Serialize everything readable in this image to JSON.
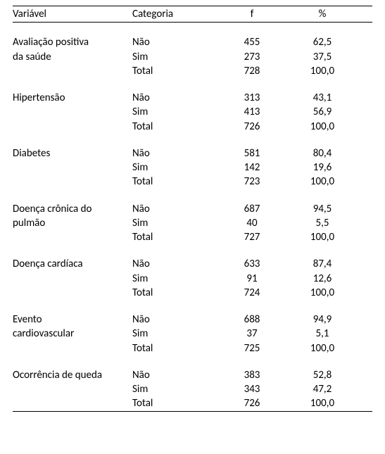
{
  "header": {
    "variavel": "Variável",
    "categoria": "Categoria",
    "f": "f",
    "pct": "%"
  },
  "groups": [
    {
      "var_lines": [
        "Avaliação positiva",
        "da saúde"
      ],
      "rows": [
        {
          "cat": "Não",
          "f": "455",
          "pct": "62,5"
        },
        {
          "cat": "Sim",
          "f": "273",
          "pct": "37,5"
        },
        {
          "cat": "Total",
          "f": "728",
          "pct": "100,0"
        }
      ]
    },
    {
      "var_lines": [
        "Hipertensão"
      ],
      "rows": [
        {
          "cat": "Não",
          "f": "313",
          "pct": "43,1"
        },
        {
          "cat": "Sim",
          "f": "413",
          "pct": "56,9"
        },
        {
          "cat": "Total",
          "f": "726",
          "pct": "100,0"
        }
      ]
    },
    {
      "var_lines": [
        "Diabetes"
      ],
      "rows": [
        {
          "cat": "Não",
          "f": "581",
          "pct": "80,4"
        },
        {
          "cat": "Sim",
          "f": "142",
          "pct": "19,6"
        },
        {
          "cat": "Total",
          "f": "723",
          "pct": "100,0"
        }
      ]
    },
    {
      "var_lines": [
        "Doença crônica do",
        "pulmão"
      ],
      "rows": [
        {
          "cat": "Não",
          "f": "687",
          "pct": "94,5"
        },
        {
          "cat": "Sim",
          "f": "40",
          "pct": "5,5"
        },
        {
          "cat": "Total",
          "f": "727",
          "pct": "100,0"
        }
      ]
    },
    {
      "var_lines": [
        "Doença cardíaca"
      ],
      "rows": [
        {
          "cat": "Não",
          "f": "633",
          "pct": "87,4"
        },
        {
          "cat": "Sim",
          "f": "91",
          "pct": "12,6"
        },
        {
          "cat": "Total",
          "f": "724",
          "pct": "100,0"
        }
      ]
    },
    {
      "var_lines": [
        "Evento",
        "cardiovascular"
      ],
      "rows": [
        {
          "cat": "Não",
          "f": "688",
          "pct": "94,9"
        },
        {
          "cat": "Sim",
          "f": "37",
          "pct": "5,1"
        },
        {
          "cat": "Total",
          "f": "725",
          "pct": "100,0"
        }
      ]
    },
    {
      "var_lines": [
        "Ocorrência de queda"
      ],
      "rows": [
        {
          "cat": "Não",
          "f": "383",
          "pct": "52,8"
        },
        {
          "cat": "Sim",
          "f": "343",
          "pct": "47,2"
        },
        {
          "cat": "Total",
          "f": "726",
          "pct": "100,0"
        }
      ]
    }
  ]
}
